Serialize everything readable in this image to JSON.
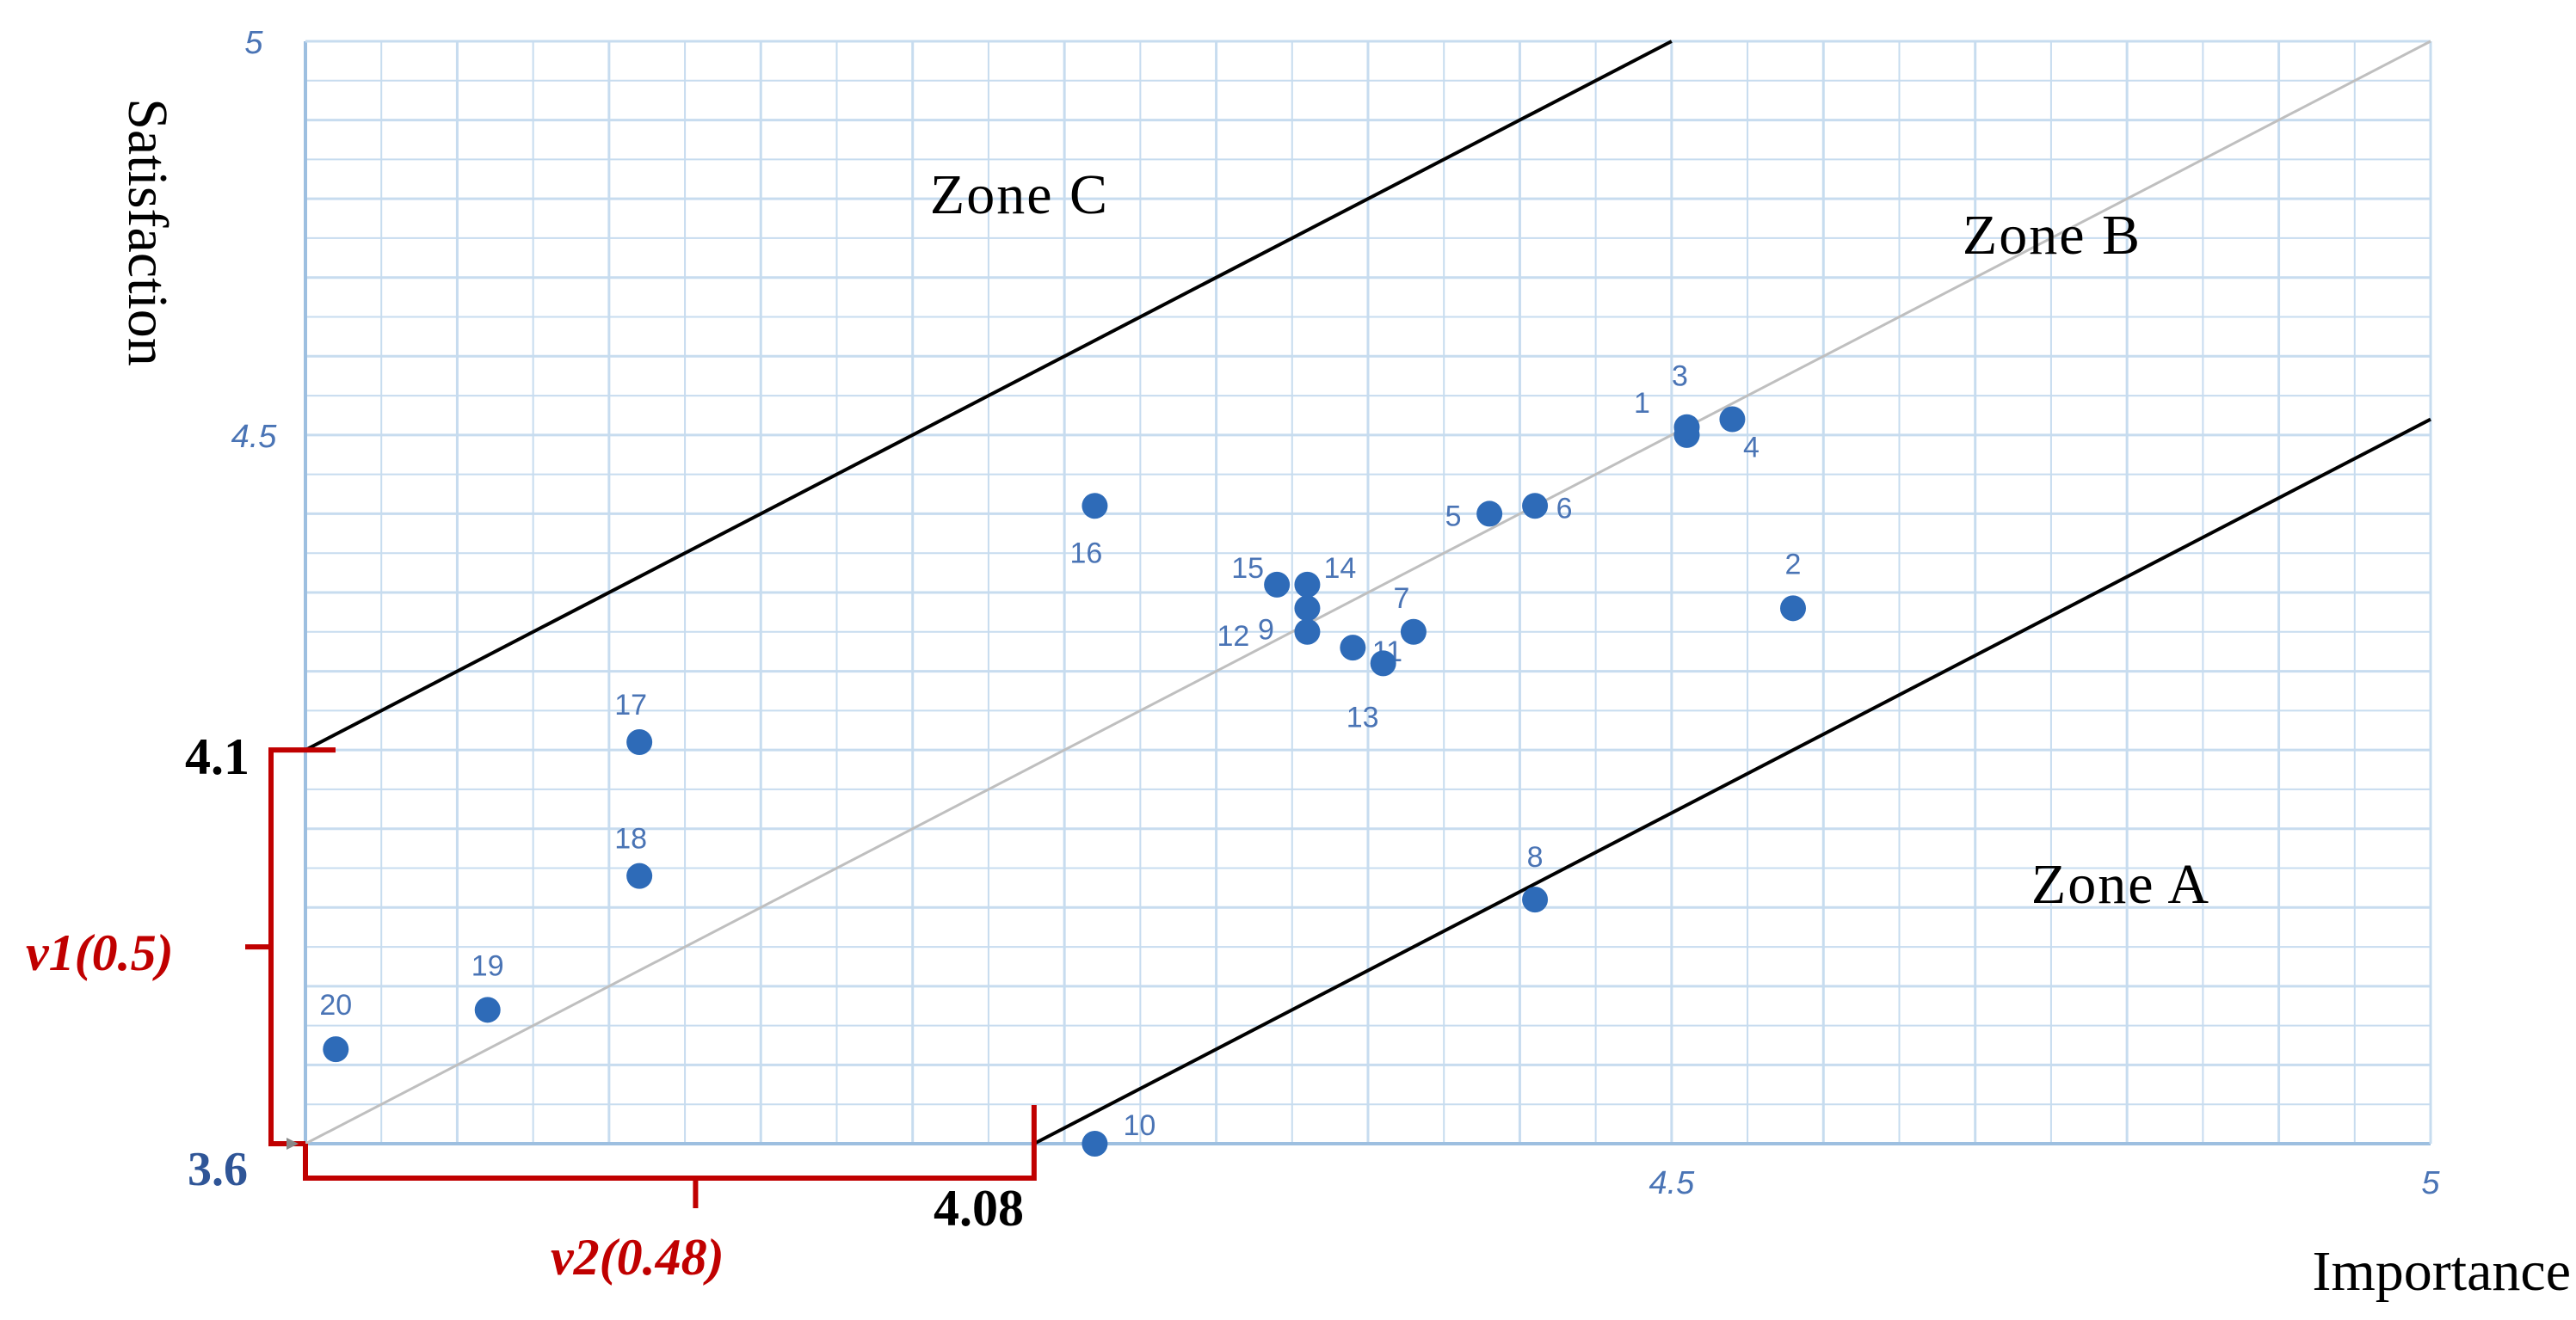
{
  "chart_data": {
    "type": "scatter",
    "xlabel": "Importance",
    "ylabel": "Satisfaction",
    "xlim": [
      3.6,
      5.0
    ],
    "ylim": [
      3.6,
      5.0
    ],
    "x_ticks": [
      {
        "value": 4.5,
        "label": "4.5"
      },
      {
        "value": 5.0,
        "label": "5"
      }
    ],
    "y_ticks": [
      {
        "value": 4.5,
        "label": "4.5"
      },
      {
        "value": 5.0,
        "label": "5"
      }
    ],
    "grid": true,
    "minor_step": 0.05,
    "point_color": "#2e6bb8",
    "points": [
      {
        "label": "1",
        "x": 4.51,
        "y": 4.5
      },
      {
        "label": "2",
        "x": 4.58,
        "y": 4.28
      },
      {
        "label": "3",
        "x": 4.51,
        "y": 4.51
      },
      {
        "label": "4",
        "x": 4.54,
        "y": 4.52
      },
      {
        "label": "5",
        "x": 4.38,
        "y": 4.4
      },
      {
        "label": "6",
        "x": 4.41,
        "y": 4.41
      },
      {
        "label": "7",
        "x": 4.33,
        "y": 4.25
      },
      {
        "label": "8",
        "x": 4.41,
        "y": 3.91
      },
      {
        "label": "9",
        "x": 4.26,
        "y": 4.28
      },
      {
        "label": "10",
        "x": 4.12,
        "y": 3.6
      },
      {
        "label": "11",
        "x": 4.29,
        "y": 4.23
      },
      {
        "label": "12",
        "x": 4.26,
        "y": 4.25
      },
      {
        "label": "13",
        "x": 4.31,
        "y": 4.21
      },
      {
        "label": "14",
        "x": 4.26,
        "y": 4.31
      },
      {
        "label": "15",
        "x": 4.24,
        "y": 4.31
      },
      {
        "label": "16",
        "x": 4.12,
        "y": 4.41
      },
      {
        "label": "17",
        "x": 3.82,
        "y": 4.11
      },
      {
        "label": "18",
        "x": 3.82,
        "y": 3.94
      },
      {
        "label": "19",
        "x": 3.72,
        "y": 3.77
      },
      {
        "label": "20",
        "x": 3.62,
        "y": 3.72
      }
    ],
    "lines": [
      {
        "name": "upper",
        "from": [
          3.6,
          4.1
        ],
        "to": [
          4.5,
          5.0
        ]
      },
      {
        "name": "diagonal",
        "from": [
          3.6,
          3.6
        ],
        "to": [
          5.0,
          5.0
        ]
      },
      {
        "name": "lower",
        "from": [
          4.08,
          3.6
        ],
        "to": [
          5.0,
          4.52
        ]
      }
    ],
    "zones": [
      {
        "label": "Zone C"
      },
      {
        "label": "Zone B"
      },
      {
        "label": "Zone A"
      }
    ],
    "annotations": {
      "y_intercept": "4.1",
      "x_intercept": "4.08",
      "origin": "3.6",
      "v1": "v1(0.5)",
      "v2": "v2(0.48)"
    },
    "colors": {
      "grid": "#c7dcef",
      "frame": "#9dbfe0",
      "diagonal": "#bfbfbf",
      "bound": "#000000",
      "bracket": "#c00000"
    }
  }
}
